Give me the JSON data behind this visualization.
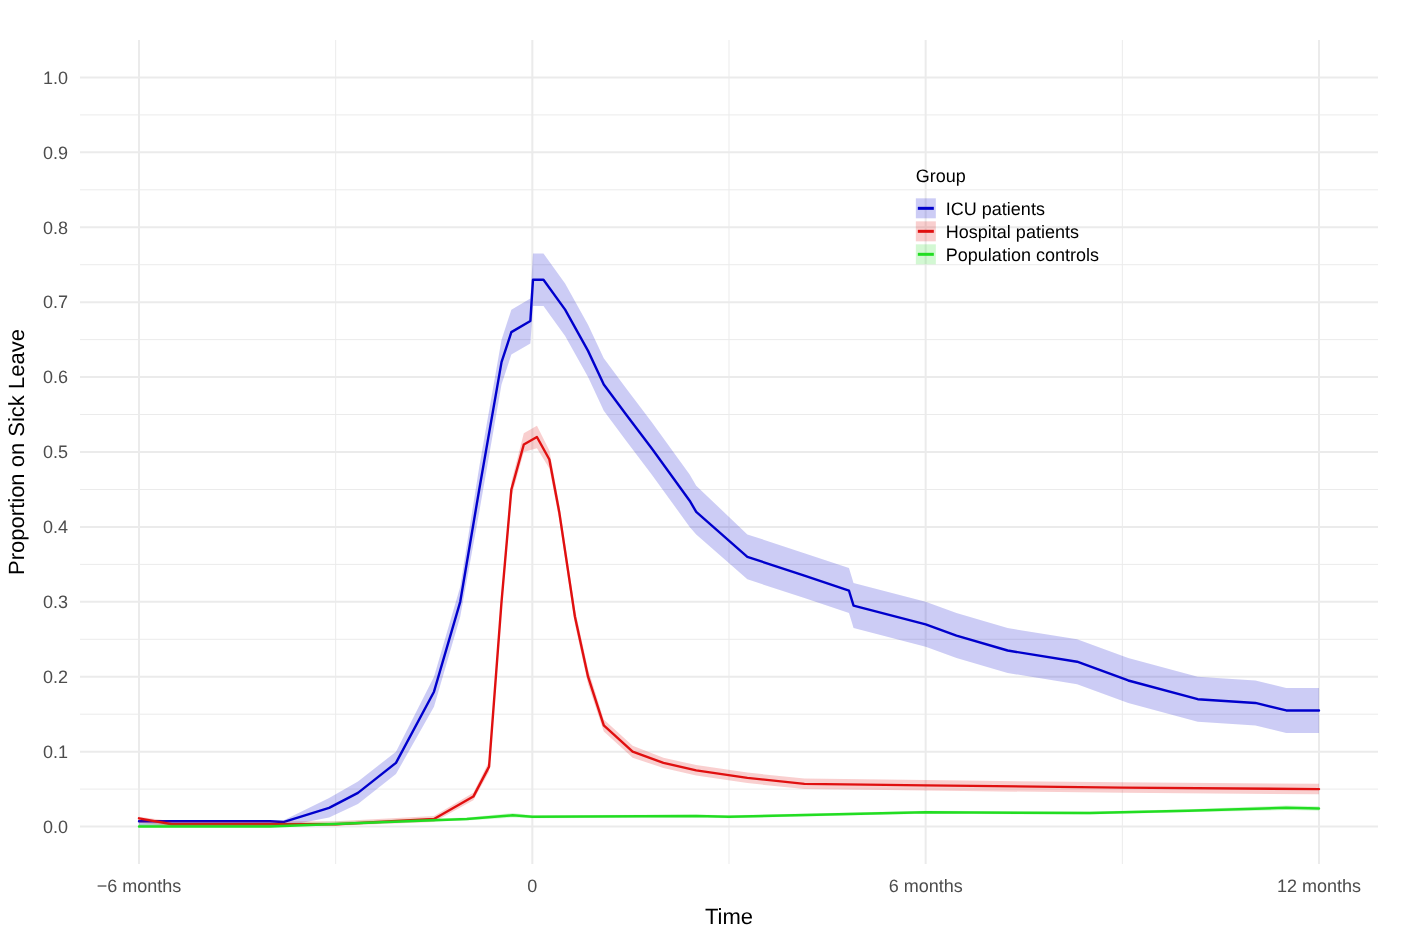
{
  "chart_data": {
    "type": "line",
    "xlabel": "Time",
    "ylabel": "Proportion on Sick Leave",
    "legend_title": "Group",
    "legend": "top right",
    "grid": true,
    "marker": "none",
    "line_style": "solid",
    "xlim": [
      -6.9,
      12.9
    ],
    "xticks": [
      {
        "value": -6,
        "label": "−6 months"
      },
      {
        "value": -3,
        "label": null
      },
      0,
      {
        "value": 3,
        "label": null
      },
      {
        "value": 6,
        "label": "6 months"
      },
      {
        "value": 9,
        "label": null
      },
      {
        "value": 12,
        "label": "12 months"
      }
    ],
    "ylim": [
      -0.05,
      1.05
    ],
    "yticks": [
      {
        "value": 0,
        "label": "0.0"
      },
      {
        "value": 0.05,
        "label": null
      },
      {
        "value": 0.1,
        "label": "0.1"
      },
      {
        "value": 0.15,
        "label": null
      },
      {
        "value": 0.2,
        "label": "0.2"
      },
      {
        "value": 0.25,
        "label": null
      },
      {
        "value": 0.3,
        "label": "0.3"
      },
      {
        "value": 0.35,
        "label": null
      },
      {
        "value": 0.4,
        "label": "0.4"
      },
      {
        "value": 0.45,
        "label": null
      },
      {
        "value": 0.5,
        "label": "0.5"
      },
      {
        "value": 0.55,
        "label": null
      },
      {
        "value": 0.6,
        "label": "0.6"
      },
      {
        "value": 0.65,
        "label": null
      },
      {
        "value": 0.7,
        "label": "0.7"
      },
      {
        "value": 0.75,
        "label": null
      },
      {
        "value": 0.8,
        "label": "0.8"
      },
      {
        "value": 0.85,
        "label": null
      },
      {
        "value": 0.9,
        "label": "0.9"
      },
      {
        "value": 0.95,
        "label": null
      },
      {
        "value": 1,
        "label": "1.0"
      }
    ],
    "series": [
      {
        "name": "ICU patients",
        "color": "#0000cc",
        "x": [
          -6,
          -5,
          -4,
          -3.8,
          -3.1,
          -2.66,
          -2.08,
          -1.5,
          -1.1,
          -0.81,
          -0.47,
          -0.32,
          -0.03,
          0.01,
          0.17,
          0.5,
          0.85,
          1.09,
          1.43,
          1.82,
          2.4,
          2.5,
          3.28,
          4.15,
          4.83,
          4.9,
          6,
          6.47,
          7.25,
          8.31,
          9.09,
          10.15,
          11.03,
          11.5,
          12
        ],
        "values": [
          0.007,
          0.007,
          0.007,
          0.006,
          0.025,
          0.045,
          0.085,
          0.18,
          0.3,
          0.45,
          0.62,
          0.66,
          0.675,
          0.73,
          0.73,
          0.69,
          0.635,
          0.59,
          0.55,
          0.505,
          0.435,
          0.42,
          0.36,
          0.335,
          0.315,
          0.295,
          0.27,
          0.255,
          0.235,
          0.22,
          0.195,
          0.17,
          0.165,
          0.155,
          0.155
        ],
        "lower": [
          0,
          0,
          0,
          0,
          0.012,
          0.03,
          0.07,
          0.16,
          0.28,
          0.42,
          0.59,
          0.63,
          0.645,
          0.695,
          0.695,
          0.655,
          0.6,
          0.555,
          0.515,
          0.47,
          0.4,
          0.39,
          0.33,
          0.305,
          0.285,
          0.265,
          0.24,
          0.225,
          0.205,
          0.19,
          0.165,
          0.14,
          0.135,
          0.125,
          0.125
        ],
        "upper": [
          0.008,
          0.008,
          0.008,
          0.008,
          0.038,
          0.06,
          0.1,
          0.2,
          0.32,
          0.48,
          0.65,
          0.69,
          0.705,
          0.765,
          0.765,
          0.725,
          0.67,
          0.625,
          0.585,
          0.54,
          0.47,
          0.455,
          0.39,
          0.365,
          0.345,
          0.325,
          0.3,
          0.285,
          0.265,
          0.25,
          0.225,
          0.2,
          0.195,
          0.185,
          0.185
        ]
      },
      {
        "name": "Hospital patients",
        "color": "#e01010",
        "x": [
          -6,
          -5.5,
          -3,
          -1.5,
          -0.9,
          -0.66,
          -0.47,
          -0.32,
          -0.13,
          0.07,
          0.26,
          0.41,
          0.65,
          0.85,
          1.09,
          1.53,
          2,
          2.5,
          3.28,
          4.15,
          6,
          9,
          12
        ],
        "values": [
          0.011,
          0.003,
          0.003,
          0.01,
          0.04,
          0.08,
          0.3,
          0.45,
          0.51,
          0.52,
          0.49,
          0.42,
          0.28,
          0.2,
          0.135,
          0.1,
          0.085,
          0.075,
          0.065,
          0.057,
          0.055,
          0.052,
          0.05
        ],
        "lower": [
          0.005,
          0.001,
          0.001,
          0.006,
          0.035,
          0.073,
          0.29,
          0.44,
          0.5,
          0.505,
          0.478,
          0.41,
          0.27,
          0.19,
          0.127,
          0.092,
          0.078,
          0.068,
          0.058,
          0.05,
          0.048,
          0.045,
          0.043
        ],
        "upper": [
          0.013,
          0.007,
          0.007,
          0.014,
          0.045,
          0.087,
          0.31,
          0.46,
          0.525,
          0.535,
          0.502,
          0.43,
          0.29,
          0.21,
          0.143,
          0.108,
          0.092,
          0.082,
          0.072,
          0.064,
          0.062,
          0.059,
          0.057
        ]
      },
      {
        "name": "Population controls",
        "color": "#22dd22",
        "x": [
          -6,
          -4,
          -1,
          -0.3,
          0,
          2.5,
          3,
          6,
          8.5,
          10,
          11.5,
          12
        ],
        "values": [
          0,
          0,
          0.01,
          0.015,
          0.013,
          0.014,
          0.013,
          0.019,
          0.018,
          0.021,
          0.025,
          0.024
        ],
        "lower": [
          0,
          0,
          0.008,
          0.012,
          0.011,
          0.012,
          0.011,
          0.017,
          0.016,
          0.019,
          0.022,
          0.021
        ],
        "upper": [
          0.004,
          0.004,
          0.012,
          0.018,
          0.015,
          0.016,
          0.015,
          0.021,
          0.02,
          0.023,
          0.028,
          0.027
        ]
      }
    ]
  }
}
